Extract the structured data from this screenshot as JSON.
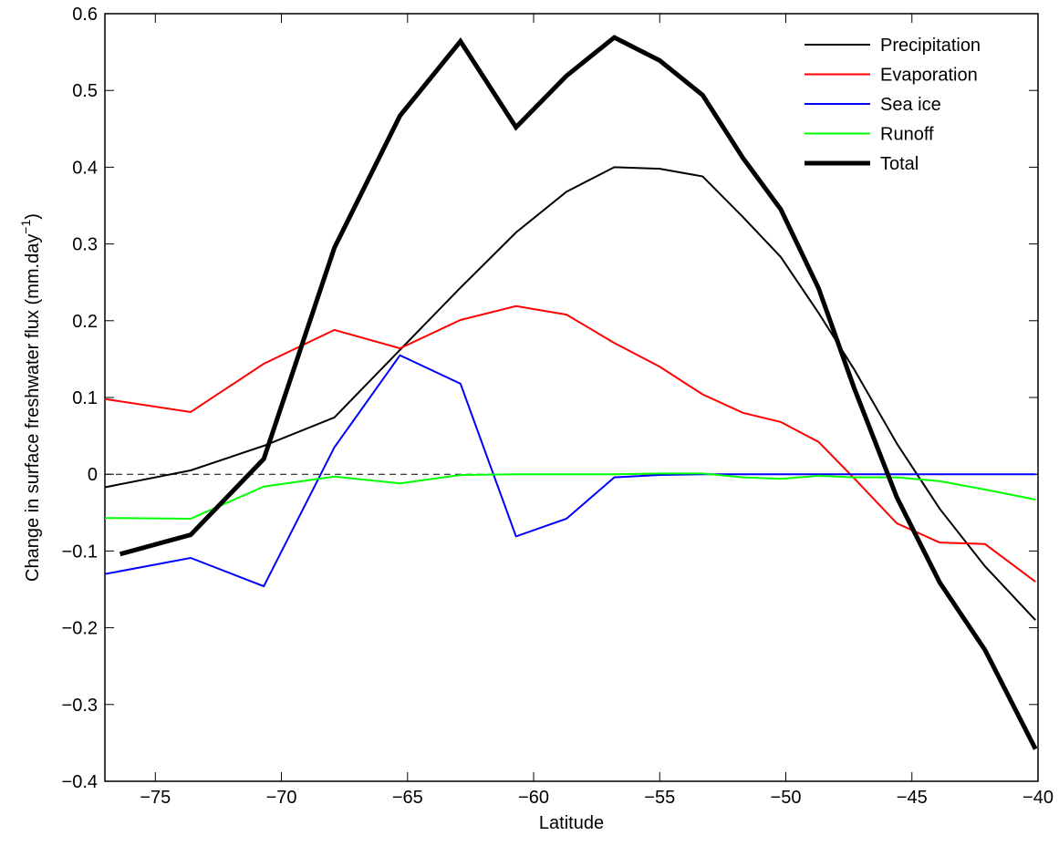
{
  "chart_data": {
    "type": "line",
    "xlabel": "Latitude",
    "ylabel_main": "Change in surface freshwater flux (mm.day",
    "ylabel_sup": "−1",
    "ylabel_close": ")",
    "xlim": [
      -77,
      -40
    ],
    "ylim": [
      -0.4,
      0.6
    ],
    "xticks": [
      -75,
      -70,
      -65,
      -60,
      -55,
      -50,
      -45,
      -40
    ],
    "xtick_labels": [
      "−75",
      "−70",
      "−65",
      "−60",
      "−55",
      "−50",
      "−45",
      "−40"
    ],
    "yticks": [
      -0.4,
      -0.3,
      -0.2,
      -0.1,
      0,
      0.1,
      0.2,
      0.3,
      0.4,
      0.5,
      0.6
    ],
    "ytick_labels": [
      "−0.4",
      "−0.3",
      "−0.2",
      "−0.1",
      "0",
      "0.1",
      "0.2",
      "0.3",
      "0.4",
      "0.5",
      "0.6"
    ],
    "zero_line": {
      "y": 0,
      "style": "dashed",
      "color": "#000000"
    },
    "grid": false,
    "legend_position": "top-right",
    "x": [
      -77,
      -73.6,
      -70.7,
      -67.9,
      -65.3,
      -62.9,
      -60.7,
      -58.7,
      -56.8,
      -55.0,
      -53.3,
      -51.7,
      -50.2,
      -48.7,
      -47.3,
      -45.9,
      -44.6,
      -43.3,
      -42.0,
      -40.8,
      -39.6
    ],
    "series": [
      {
        "name": "Precipitation",
        "color": "#000000",
        "width": 2,
        "x": [
          -77,
          -73.6,
          -70.7,
          -67.9,
          -65.3,
          -62.9,
          -60.7,
          -58.7,
          -56.8,
          -55.0,
          -53.3,
          -51.7,
          -50.2,
          -48.7,
          -47.3,
          -45.6,
          -43.9,
          -42.1,
          -40.1
        ],
        "values": [
          -0.017,
          0.005,
          0.037,
          0.074,
          0.162,
          0.243,
          0.315,
          0.368,
          0.4,
          0.398,
          0.388,
          0.335,
          0.283,
          0.21,
          0.137,
          0.04,
          -0.045,
          -0.12,
          -0.19
        ]
      },
      {
        "name": "Evaporation",
        "color": "#ff0000",
        "width": 2,
        "x": [
          -77,
          -73.6,
          -70.7,
          -67.9,
          -65.3,
          -62.9,
          -60.7,
          -58.7,
          -56.8,
          -55.0,
          -53.3,
          -51.7,
          -50.2,
          -48.7,
          -47.3,
          -45.6,
          -43.9,
          -42.1,
          -40.1
        ],
        "values": [
          0.098,
          0.081,
          0.144,
          0.188,
          0.164,
          0.201,
          0.219,
          0.208,
          0.171,
          0.14,
          0.104,
          0.08,
          0.068,
          0.042,
          -0.005,
          -0.064,
          -0.089,
          -0.091,
          -0.14
        ]
      },
      {
        "name": "Sea ice",
        "color": "#0000ff",
        "width": 2,
        "x": [
          -77,
          -73.6,
          -70.7,
          -67.9,
          -65.3,
          -62.9,
          -60.7,
          -58.7,
          -56.8,
          -55.0,
          -53.3,
          -51.7,
          -50.2,
          -48.7,
          -47.3,
          -45.6,
          -43.9,
          -42.1,
          -40.1
        ],
        "values": [
          -0.13,
          -0.109,
          -0.146,
          0.035,
          0.155,
          0.118,
          -0.081,
          -0.058,
          -0.004,
          -0.001,
          0,
          0,
          0,
          0,
          0,
          0,
          0,
          0,
          0
        ]
      },
      {
        "name": "Runoff",
        "color": "#00ff00",
        "width": 2,
        "x": [
          -77,
          -73.6,
          -70.7,
          -67.9,
          -65.3,
          -62.9,
          -60.7,
          -58.7,
          -56.8,
          -55.0,
          -53.3,
          -51.7,
          -50.2,
          -48.7,
          -47.3,
          -45.6,
          -43.9,
          -42.1,
          -40.1
        ],
        "values": [
          -0.057,
          -0.058,
          -0.016,
          -0.003,
          -0.012,
          -0.001,
          0,
          0,
          0,
          0.001,
          0.001,
          -0.004,
          -0.006,
          -0.002,
          -0.004,
          -0.004,
          -0.009,
          -0.02,
          -0.033
        ]
      },
      {
        "name": "Total",
        "color": "#000000",
        "width": 5,
        "x": [
          -76.4,
          -73.6,
          -70.7,
          -67.9,
          -65.3,
          -62.9,
          -60.7,
          -58.7,
          -56.8,
          -55.0,
          -53.3,
          -51.7,
          -50.2,
          -48.7,
          -47.3,
          -45.6,
          -43.9,
          -42.1,
          -40.1
        ],
        "values": [
          -0.104,
          -0.079,
          0.02,
          0.295,
          0.467,
          0.564,
          0.452,
          0.519,
          0.569,
          0.539,
          0.494,
          0.412,
          0.345,
          0.242,
          0.113,
          -0.03,
          -0.141,
          -0.229,
          -0.358
        ]
      }
    ]
  }
}
